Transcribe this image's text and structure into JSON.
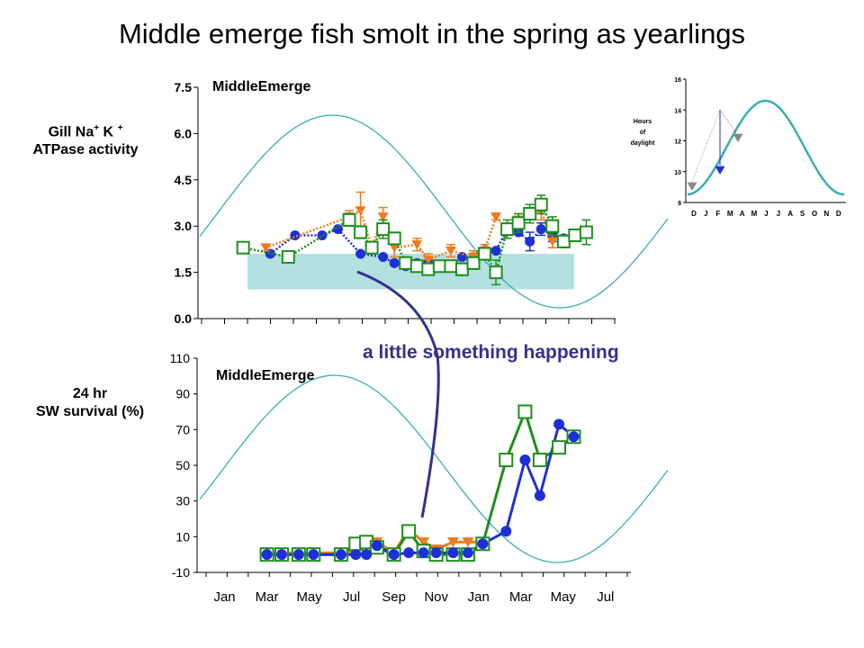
{
  "slide": {
    "title": "Middle emerge fish smolt in the spring as yearlings",
    "annotation": "a little something happening"
  },
  "colors": {
    "teal": "#3aaeae",
    "band": "#b3e0e0",
    "blue": "#1f2fd6",
    "orange": "#f07a1e",
    "green": "#1e8f1e",
    "arrow": "#33338a",
    "grey": "#888888"
  },
  "chart_data": [
    {
      "id": "atpase",
      "type": "scatter",
      "title": "MiddleEmerge",
      "ylabel_line1": "Gill Na",
      "ylabel_sup1": "+",
      "ylabel_mid": " K ",
      "ylabel_sup2": "+",
      "ylabel_line2": "ATPase activity",
      "ylim": [
        0,
        7.5
      ],
      "yticks": [
        "0.0",
        "1.5",
        "3.0",
        "4.5",
        "6.0",
        "7.5"
      ],
      "ytick_values": [
        0,
        1.5,
        3.0,
        4.5,
        6.0,
        7.5
      ],
      "reference_band": [
        0.95,
        2.1
      ],
      "series": [
        {
          "color_key": "green",
          "marker": "square",
          "x": [
            2,
            4,
            6.7,
            7.2,
            7.7,
            8.2,
            8.7,
            9.2,
            9.7,
            10.2,
            10.7,
            11.2,
            11.7,
            12.2,
            12.7,
            13.2,
            13.7,
            14.2,
            14.7,
            15.2,
            15.7,
            16.2,
            16.7,
            17.2
          ],
          "y": [
            2.3,
            2.0,
            3.2,
            2.8,
            2.3,
            2.9,
            2.6,
            1.8,
            1.7,
            1.6,
            1.7,
            1.7,
            1.6,
            1.8,
            2.1,
            1.5,
            2.9,
            3.1,
            3.4,
            3.7,
            3.0,
            2.5,
            2.7,
            2.8
          ],
          "err": [
            0.15,
            0.15,
            0.2,
            0.2,
            0.2,
            0.3,
            0.2,
            0.2,
            0.1,
            0.1,
            0.1,
            0.1,
            0.2,
            0.2,
            0.2,
            0.4,
            0.3,
            0.3,
            0.3,
            0.3,
            0.3,
            0.2,
            0.2,
            0.4
          ]
        },
        {
          "color_key": "orange",
          "marker": "triangle",
          "x": [
            3,
            6.7,
            7.2,
            7.7,
            8.2,
            8.7,
            9.7,
            10.2,
            11.2,
            12.2,
            12.7,
            13.2,
            13.7,
            14.2,
            15.2,
            15.7
          ],
          "y": [
            2.3,
            3.3,
            3.5,
            2.3,
            3.3,
            2.3,
            2.4,
            1.9,
            2.2,
            2.0,
            2.2,
            3.3,
            2.9,
            3.2,
            3.5,
            2.5
          ],
          "err": [
            0.1,
            0.2,
            0.6,
            0.2,
            0.3,
            0.3,
            0.2,
            0.2,
            0.2,
            0.2,
            0.2,
            0.1,
            0.2,
            0.2,
            0.3,
            0.2
          ]
        },
        {
          "color_key": "blue",
          "marker": "circle",
          "x": [
            3.2,
            4.3,
            5.5,
            6.2,
            7.2,
            8.2,
            8.7,
            9.2,
            9.7,
            10.2,
            11.2,
            11.7,
            12.7,
            13.2,
            13.7,
            14.2,
            14.7,
            15.2,
            15.7,
            16.2
          ],
          "y": [
            2.1,
            2.7,
            2.7,
            2.9,
            2.1,
            2.0,
            1.8,
            1.7,
            1.8,
            1.8,
            1.7,
            2.0,
            2.2,
            2.2,
            2.9,
            2.8,
            2.5,
            2.9,
            2.7,
            2.6
          ],
          "err": [
            0,
            0,
            0,
            0,
            0,
            0,
            0,
            0,
            0,
            0,
            0,
            0,
            0,
            0,
            0,
            0,
            0.3,
            0.2,
            0.2,
            0
          ]
        }
      ]
    },
    {
      "id": "survival",
      "type": "line",
      "title": "MiddleEmerge",
      "ylabel_line1": "24 hr",
      "ylabel_line2": "SW survival (%)",
      "ylim": [
        -10,
        110
      ],
      "yticks": [
        "-10",
        "10",
        "30",
        "50",
        "70",
        "90",
        "110"
      ],
      "ytick_values": [
        -10,
        10,
        30,
        50,
        70,
        90,
        110
      ],
      "xticks": [
        "Jan",
        "Mar",
        "May",
        "Jul",
        "Sep",
        "Nov",
        "Jan",
        "Mar",
        "May",
        "Jul"
      ],
      "xtick_values": [
        1,
        3,
        5,
        7,
        9,
        11,
        13,
        15,
        17,
        19
      ],
      "series": [
        {
          "color_key": "orange",
          "marker": "triangle",
          "x": [
            3,
            3.7,
            4.5,
            5.2,
            6.5,
            7.2,
            7.7,
            8.2,
            9.0,
            9.7,
            10.4,
            11.0,
            11.8,
            12.5,
            13.2
          ],
          "y": [
            1,
            1,
            1,
            1,
            1,
            2,
            7,
            7,
            1,
            14,
            7,
            3,
            7,
            7,
            7
          ]
        },
        {
          "color_key": "green",
          "marker": "square",
          "x": [
            3,
            3.7,
            4.5,
            5.2,
            6.5,
            7.2,
            7.7,
            8.2,
            9.0,
            9.7,
            10.4,
            11.0,
            11.8,
            12.5,
            13.2,
            14.3,
            15.2,
            15.9,
            16.8,
            17.5
          ],
          "y": [
            0,
            0,
            0,
            0,
            0,
            6,
            7,
            4,
            0,
            13,
            2,
            0,
            0,
            0,
            6,
            53,
            80,
            53,
            60,
            66
          ]
        },
        {
          "color_key": "blue",
          "marker": "circle",
          "x": [
            3,
            3.7,
            4.5,
            5.2,
            6.5,
            7.2,
            7.7,
            8.2,
            9.0,
            9.7,
            10.4,
            11.0,
            11.8,
            12.5,
            13.2,
            14.3,
            15.2,
            15.9,
            16.8,
            17.5
          ],
          "y": [
            0,
            0,
            0,
            0,
            0,
            0,
            0,
            5,
            0,
            1,
            1,
            1,
            1,
            1,
            6,
            13,
            53,
            33,
            73,
            66
          ]
        }
      ]
    },
    {
      "id": "daylight",
      "type": "line",
      "ylabel_line1": "Hours",
      "ylabel_line2": "of",
      "ylabel_line3": "daylight",
      "ylim": [
        8,
        16
      ],
      "yticks": [
        "8",
        "10",
        "12",
        "14",
        "16"
      ],
      "ytick_values": [
        8,
        10,
        12,
        14,
        16
      ],
      "xticks": [
        "D",
        "J",
        "F",
        "M",
        "A",
        "M",
        "J",
        "J",
        "A",
        "S",
        "O",
        "N",
        "D"
      ]
    }
  ]
}
